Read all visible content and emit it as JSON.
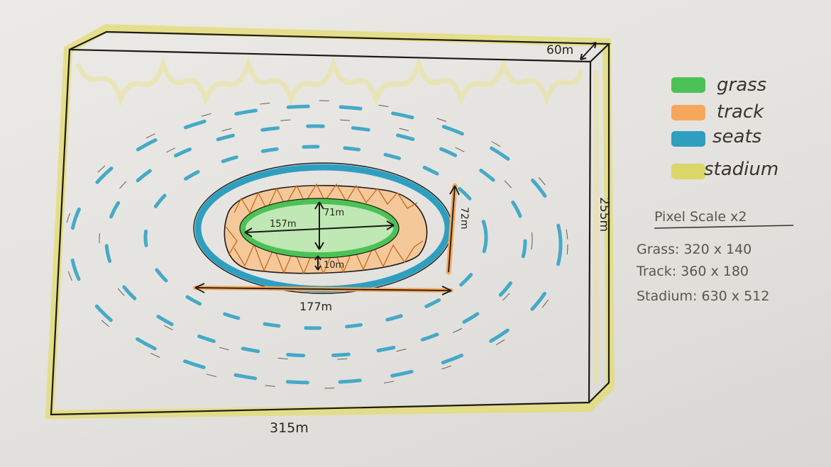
{
  "labels": {
    "depth": "60m",
    "height": "255m",
    "width": "315m",
    "field_length": "157m",
    "field_width": "71m",
    "track_gap": "10m",
    "seat_length": "177m",
    "seat_width": "72m"
  },
  "legend": [
    {
      "label": "grass",
      "color": "#4cc256"
    },
    {
      "label": "track",
      "color": "#f6a75b"
    },
    {
      "label": "seats",
      "color": "#2f9fc0"
    },
    {
      "label": "stadium",
      "color": "#dcd668"
    }
  ],
  "scale": {
    "title": "Pixel Scale x2",
    "lines": [
      "Grass: 320 x 140",
      "Track: 360 x 180",
      "Stadium: 630 x 512"
    ]
  }
}
